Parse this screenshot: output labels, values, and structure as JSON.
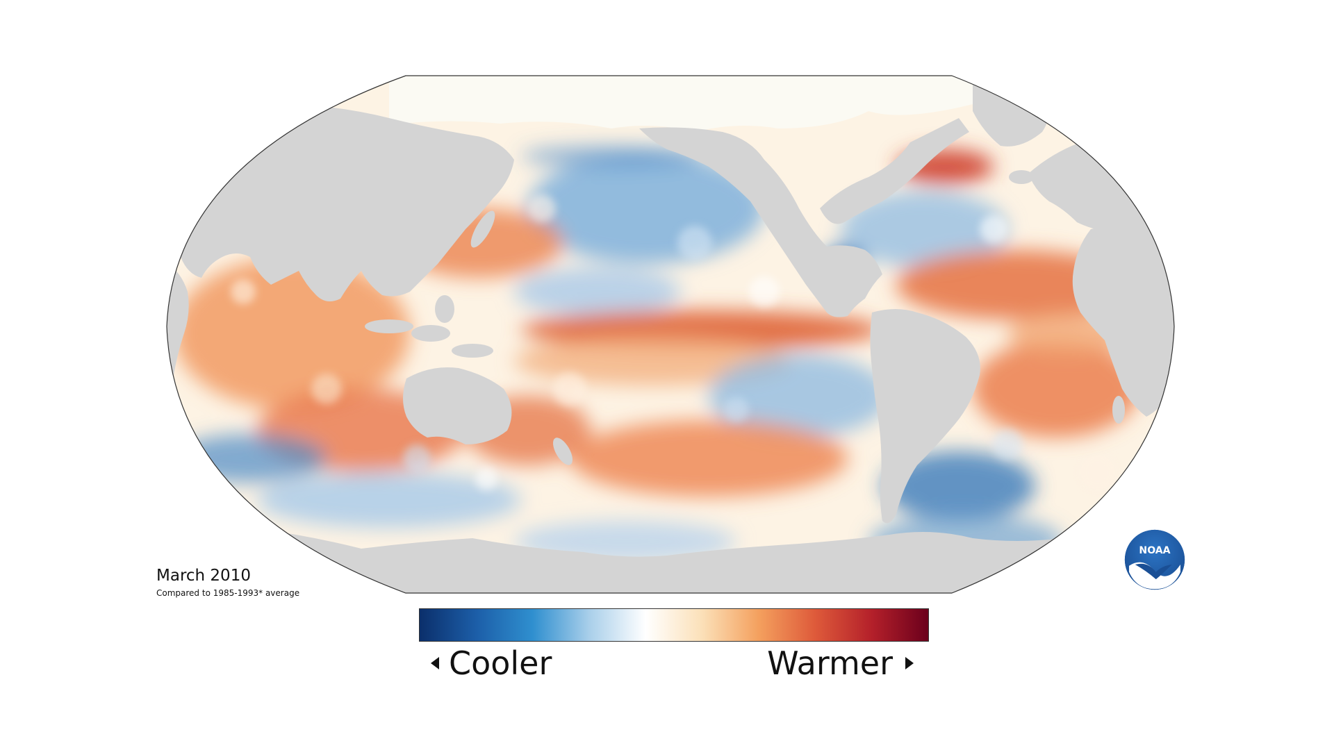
{
  "figure": {
    "title": "March 2010",
    "subtitle": "Compared to 1985-1993* average"
  },
  "legend": {
    "cool_label": "Cooler",
    "warm_label": "Warmer",
    "colors": [
      "#0b2f6b",
      "#1c5ea8",
      "#2f8fcf",
      "#a9cfea",
      "#ffffff",
      "#fbe0b8",
      "#f4a05e",
      "#de5a3a",
      "#b4202a",
      "#6b001c"
    ]
  },
  "logo": {
    "text": "NOAA",
    "icon": "noaa-logo"
  },
  "map_colors": {
    "land": "#d4d4d4",
    "ice": "#fbfaf3",
    "ocean_neutral": "#fdf6ea",
    "border": "#333333"
  }
}
